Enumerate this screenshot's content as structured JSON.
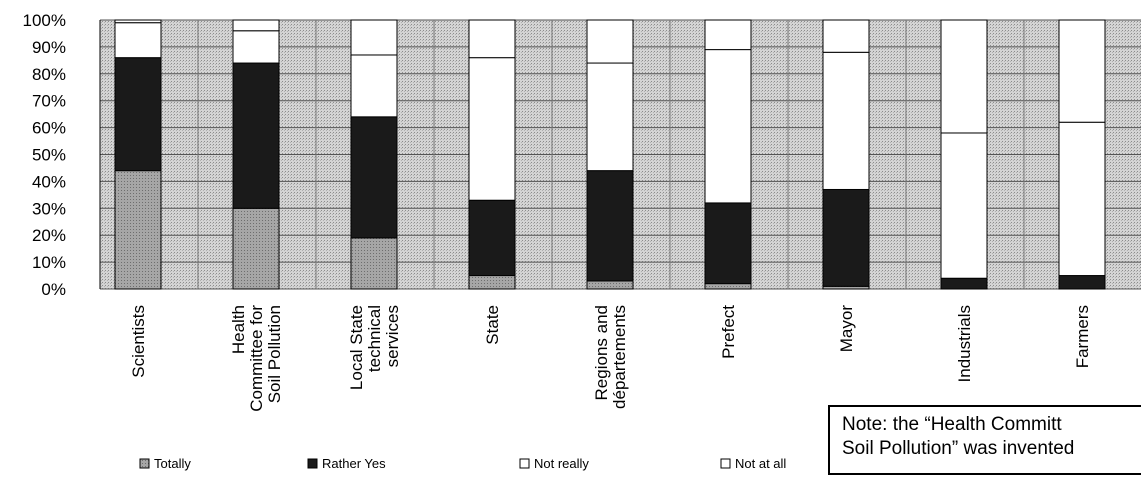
{
  "chart_data": {
    "type": "bar",
    "stacked": true,
    "percent": true,
    "categories": [
      [
        "Scientists"
      ],
      [
        "Health",
        "Committee for",
        "Soil Pollution"
      ],
      [
        "Local State",
        "technical",
        "services"
      ],
      [
        "State"
      ],
      [
        "Regions and",
        "départements"
      ],
      [
        "Prefect"
      ],
      [
        "Mayor"
      ],
      [
        "Industrials"
      ],
      [
        "Farmers"
      ]
    ],
    "series": [
      {
        "name": "Totally",
        "color": "#a9a9a9",
        "values": [
          44,
          30,
          19,
          5,
          3,
          2,
          1,
          0,
          0
        ]
      },
      {
        "name": "Rather Yes",
        "color": "#1a1a1a",
        "values": [
          42,
          54,
          45,
          28,
          41,
          30,
          36,
          4,
          5
        ]
      },
      {
        "name": "Not really",
        "color": "#ffffff",
        "values": [
          13,
          12,
          23,
          53,
          40,
          57,
          51,
          54,
          57
        ]
      },
      {
        "name": "Not at all",
        "color": "#ffffff",
        "values": [
          1,
          4,
          13,
          14,
          16,
          11,
          12,
          42,
          38
        ]
      }
    ],
    "yticks": [
      "0%",
      "10%",
      "20%",
      "30%",
      "40%",
      "50%",
      "60%",
      "70%",
      "80%",
      "90%",
      "100%"
    ],
    "ylim": [
      0,
      100
    ],
    "grid": true,
    "legend": "bottom",
    "plot_background": "#cfcfcf"
  },
  "note": {
    "line1": "Note: the “Health Committ",
    "line2": "Soil Pollution” was invented"
  }
}
